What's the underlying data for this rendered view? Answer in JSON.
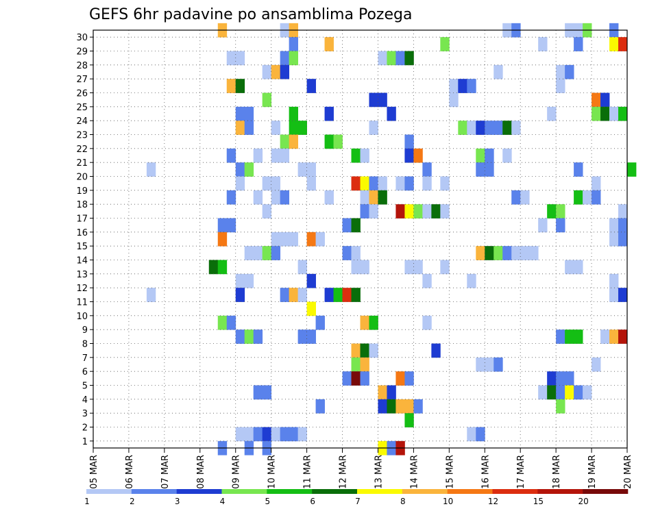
{
  "chart_data": {
    "type": "heatmap",
    "title": "GEFS 6hr padavine po ansamblima Pozega",
    "x_ticks": [
      "05 MAR",
      "06 MAR",
      "07 MAR",
      "08 MAR",
      "09 MAR",
      "10 MAR",
      "11 MAR",
      "12 MAR",
      "13 MAR",
      "14 MAR",
      "15 MAR",
      "16 MAR",
      "17 MAR",
      "18 MAR",
      "19 MAR",
      "20 MAR"
    ],
    "x_range": [
      "05 MAR 00Z",
      "20 MAR 00Z"
    ],
    "x_step_hours": 6,
    "y_ticks": [
      "1",
      "2",
      "3",
      "4",
      "5",
      "6",
      "7",
      "8",
      "9",
      "10",
      "11",
      "12",
      "13",
      "14",
      "15",
      "16",
      "17",
      "18",
      "19",
      "20",
      "21",
      "22",
      "23",
      "24",
      "25",
      "26",
      "27",
      "28",
      "29",
      "30"
    ],
    "y_range": [
      0,
      30
    ],
    "grid": true,
    "legend": {
      "placement": "bottom",
      "labels": [
        "1",
        "2",
        "3",
        "4",
        "5",
        "6",
        "7",
        "8",
        "10",
        "12",
        "15",
        "20"
      ],
      "colors": [
        "#b4c8f5",
        "#5a82eb",
        "#1e3cd2",
        "#78e650",
        "#14be14",
        "#0a6e0a",
        "#fafa00",
        "#fab43c",
        "#f57814",
        "#dc2d0f",
        "#b4140a",
        "#780a0a"
      ]
    },
    "cells": [
      [
        30,
        "08 MAR 12Z",
        7
      ],
      [
        30,
        "10 MAR 06Z",
        0
      ],
      [
        30,
        "10 MAR 12Z",
        7
      ],
      [
        30,
        "16 MAR 12Z",
        0
      ],
      [
        30,
        "16 MAR 18Z",
        1
      ],
      [
        30,
        "18 MAR 06Z",
        0
      ],
      [
        30,
        "18 MAR 12Z",
        0
      ],
      [
        30,
        "18 MAR 18Z",
        3
      ],
      [
        30,
        "19 MAR 12Z",
        1
      ],
      [
        29,
        "10 MAR 12Z",
        1
      ],
      [
        29,
        "11 MAR 12Z",
        7
      ],
      [
        29,
        "14 MAR 18Z",
        3
      ],
      [
        29,
        "17 MAR 12Z",
        0
      ],
      [
        29,
        "18 MAR 12Z",
        1
      ],
      [
        29,
        "19 MAR 12Z",
        6
      ],
      [
        29,
        "19 MAR 18Z",
        9
      ],
      [
        28,
        "08 MAR 18Z",
        0
      ],
      [
        28,
        "09 MAR 00Z",
        0
      ],
      [
        28,
        "10 MAR 06Z",
        1
      ],
      [
        28,
        "10 MAR 12Z",
        3
      ],
      [
        28,
        "13 MAR 00Z",
        0
      ],
      [
        28,
        "13 MAR 06Z",
        3
      ],
      [
        28,
        "13 MAR 12Z",
        1
      ],
      [
        28,
        "13 MAR 18Z",
        5
      ],
      [
        27,
        "09 MAR 18Z",
        0
      ],
      [
        27,
        "10 MAR 00Z",
        7
      ],
      [
        27,
        "10 MAR 06Z",
        2
      ],
      [
        27,
        "16 MAR 06Z",
        0
      ],
      [
        27,
        "18 MAR 00Z",
        0
      ],
      [
        27,
        "18 MAR 06Z",
        1
      ],
      [
        26,
        "08 MAR 18Z",
        7
      ],
      [
        26,
        "09 MAR 00Z",
        5
      ],
      [
        26,
        "11 MAR 00Z",
        2
      ],
      [
        26,
        "15 MAR 00Z",
        0
      ],
      [
        26,
        "15 MAR 06Z",
        2
      ],
      [
        26,
        "15 MAR 12Z",
        1
      ],
      [
        26,
        "18 MAR 00Z",
        0
      ],
      [
        25,
        "09 MAR 18Z",
        3
      ],
      [
        25,
        "12 MAR 18Z",
        2
      ],
      [
        25,
        "13 MAR 00Z",
        2
      ],
      [
        25,
        "15 MAR 00Z",
        0
      ],
      [
        25,
        "19 MAR 00Z",
        8
      ],
      [
        25,
        "19 MAR 06Z",
        2
      ],
      [
        24,
        "09 MAR 00Z",
        1
      ],
      [
        24,
        "09 MAR 06Z",
        1
      ],
      [
        24,
        "10 MAR 12Z",
        4
      ],
      [
        24,
        "11 MAR 12Z",
        2
      ],
      [
        24,
        "13 MAR 06Z",
        2
      ],
      [
        24,
        "17 MAR 18Z",
        0
      ],
      [
        24,
        "19 MAR 00Z",
        3
      ],
      [
        24,
        "19 MAR 06Z",
        5
      ],
      [
        24,
        "19 MAR 12Z",
        0
      ],
      [
        24,
        "19 MAR 18Z",
        4
      ],
      [
        23,
        "09 MAR 00Z",
        7
      ],
      [
        23,
        "09 MAR 06Z",
        1
      ],
      [
        23,
        "10 MAR 00Z",
        0
      ],
      [
        23,
        "10 MAR 12Z",
        4
      ],
      [
        23,
        "10 MAR 18Z",
        4
      ],
      [
        23,
        "12 MAR 18Z",
        0
      ],
      [
        23,
        "15 MAR 06Z",
        3
      ],
      [
        23,
        "15 MAR 12Z",
        0
      ],
      [
        23,
        "15 MAR 18Z",
        2
      ],
      [
        23,
        "16 MAR 00Z",
        1
      ],
      [
        23,
        "16 MAR 06Z",
        1
      ],
      [
        23,
        "16 MAR 12Z",
        5
      ],
      [
        23,
        "16 MAR 18Z",
        0
      ],
      [
        22,
        "10 MAR 06Z",
        3
      ],
      [
        22,
        "10 MAR 12Z",
        7
      ],
      [
        22,
        "11 MAR 12Z",
        4
      ],
      [
        22,
        "11 MAR 18Z",
        3
      ],
      [
        22,
        "13 MAR 18Z",
        1
      ],
      [
        21,
        "08 MAR 18Z",
        1
      ],
      [
        21,
        "09 MAR 12Z",
        0
      ],
      [
        21,
        "10 MAR 00Z",
        0
      ],
      [
        21,
        "10 MAR 06Z",
        0
      ],
      [
        21,
        "12 MAR 06Z",
        4
      ],
      [
        21,
        "12 MAR 12Z",
        0
      ],
      [
        21,
        "13 MAR 18Z",
        2
      ],
      [
        21,
        "14 MAR 00Z",
        8
      ],
      [
        21,
        "15 MAR 18Z",
        3
      ],
      [
        21,
        "16 MAR 00Z",
        1
      ],
      [
        21,
        "16 MAR 12Z",
        0
      ],
      [
        20,
        "06 MAR 12Z",
        0
      ],
      [
        20,
        "09 MAR 00Z",
        1
      ],
      [
        20,
        "09 MAR 06Z",
        3
      ],
      [
        20,
        "10 MAR 18Z",
        0
      ],
      [
        20,
        "11 MAR 00Z",
        0
      ],
      [
        20,
        "14 MAR 06Z",
        1
      ],
      [
        20,
        "15 MAR 18Z",
        1
      ],
      [
        20,
        "16 MAR 00Z",
        1
      ],
      [
        20,
        "18 MAR 12Z",
        1
      ],
      [
        20,
        "20 MAR 00Z",
        4
      ],
      [
        19,
        "09 MAR 00Z",
        0
      ],
      [
        19,
        "09 MAR 18Z",
        0
      ],
      [
        19,
        "10 MAR 00Z",
        0
      ],
      [
        19,
        "11 MAR 00Z",
        0
      ],
      [
        19,
        "12 MAR 06Z",
        9
      ],
      [
        19,
        "12 MAR 12Z",
        6
      ],
      [
        19,
        "12 MAR 18Z",
        1
      ],
      [
        19,
        "13 MAR 00Z",
        0
      ],
      [
        19,
        "13 MAR 12Z",
        0
      ],
      [
        19,
        "13 MAR 18Z",
        1
      ],
      [
        19,
        "14 MAR 06Z",
        0
      ],
      [
        19,
        "14 MAR 18Z",
        0
      ],
      [
        19,
        "19 MAR 00Z",
        0
      ],
      [
        18,
        "08 MAR 18Z",
        1
      ],
      [
        18,
        "09 MAR 12Z",
        0
      ],
      [
        18,
        "10 MAR 00Z",
        0
      ],
      [
        18,
        "10 MAR 06Z",
        1
      ],
      [
        18,
        "11 MAR 12Z",
        0
      ],
      [
        18,
        "12 MAR 12Z",
        0
      ],
      [
        18,
        "12 MAR 18Z",
        7
      ],
      [
        18,
        "13 MAR 00Z",
        5
      ],
      [
        18,
        "16 MAR 18Z",
        1
      ],
      [
        18,
        "17 MAR 00Z",
        0
      ],
      [
        18,
        "18 MAR 12Z",
        4
      ],
      [
        18,
        "18 MAR 18Z",
        0
      ],
      [
        18,
        "19 MAR 00Z",
        1
      ],
      [
        17,
        "09 MAR 18Z",
        0
      ],
      [
        17,
        "12 MAR 12Z",
        1
      ],
      [
        17,
        "12 MAR 18Z",
        0
      ],
      [
        17,
        "13 MAR 12Z",
        10
      ],
      [
        17,
        "13 MAR 18Z",
        6
      ],
      [
        17,
        "14 MAR 00Z",
        3
      ],
      [
        17,
        "14 MAR 06Z",
        0
      ],
      [
        17,
        "14 MAR 12Z",
        5
      ],
      [
        17,
        "14 MAR 18Z",
        0
      ],
      [
        17,
        "17 MAR 18Z",
        4
      ],
      [
        17,
        "18 MAR 00Z",
        3
      ],
      [
        17,
        "19 MAR 18Z",
        0
      ],
      [
        16,
        "08 MAR 12Z",
        1
      ],
      [
        16,
        "08 MAR 18Z",
        1
      ],
      [
        16,
        "12 MAR 00Z",
        1
      ],
      [
        16,
        "12 MAR 06Z",
        5
      ],
      [
        16,
        "17 MAR 12Z",
        0
      ],
      [
        16,
        "18 MAR 00Z",
        1
      ],
      [
        16,
        "19 MAR 12Z",
        0
      ],
      [
        16,
        "19 MAR 18Z",
        1
      ],
      [
        15,
        "08 MAR 12Z",
        8
      ],
      [
        15,
        "10 MAR 00Z",
        0
      ],
      [
        15,
        "10 MAR 06Z",
        0
      ],
      [
        15,
        "10 MAR 12Z",
        0
      ],
      [
        15,
        "11 MAR 00Z",
        8
      ],
      [
        15,
        "11 MAR 06Z",
        0
      ],
      [
        15,
        "19 MAR 12Z",
        0
      ],
      [
        15,
        "19 MAR 18Z",
        1
      ],
      [
        14,
        "09 MAR 06Z",
        0
      ],
      [
        14,
        "09 MAR 12Z",
        0
      ],
      [
        14,
        "09 MAR 18Z",
        3
      ],
      [
        14,
        "10 MAR 00Z",
        1
      ],
      [
        14,
        "12 MAR 00Z",
        1
      ],
      [
        14,
        "12 MAR 06Z",
        0
      ],
      [
        14,
        "15 MAR 18Z",
        7
      ],
      [
        14,
        "16 MAR 00Z",
        5
      ],
      [
        14,
        "16 MAR 06Z",
        3
      ],
      [
        14,
        "16 MAR 12Z",
        1
      ],
      [
        14,
        "16 MAR 18Z",
        0
      ],
      [
        14,
        "17 MAR 00Z",
        0
      ],
      [
        14,
        "17 MAR 06Z",
        0
      ],
      [
        13,
        "08 MAR 06Z",
        5
      ],
      [
        13,
        "08 MAR 12Z",
        4
      ],
      [
        13,
        "10 MAR 18Z",
        0
      ],
      [
        13,
        "12 MAR 06Z",
        0
      ],
      [
        13,
        "12 MAR 12Z",
        0
      ],
      [
        13,
        "13 MAR 18Z",
        0
      ],
      [
        13,
        "14 MAR 00Z",
        0
      ],
      [
        13,
        "14 MAR 18Z",
        0
      ],
      [
        13,
        "18 MAR 06Z",
        0
      ],
      [
        13,
        "18 MAR 12Z",
        0
      ],
      [
        12,
        "09 MAR 00Z",
        0
      ],
      [
        12,
        "09 MAR 06Z",
        0
      ],
      [
        12,
        "11 MAR 00Z",
        2
      ],
      [
        12,
        "14 MAR 06Z",
        0
      ],
      [
        12,
        "15 MAR 12Z",
        0
      ],
      [
        12,
        "19 MAR 12Z",
        0
      ],
      [
        11,
        "06 MAR 12Z",
        0
      ],
      [
        11,
        "09 MAR 00Z",
        2
      ],
      [
        11,
        "10 MAR 06Z",
        1
      ],
      [
        11,
        "10 MAR 12Z",
        7
      ],
      [
        11,
        "10 MAR 18Z",
        0
      ],
      [
        11,
        "11 MAR 12Z",
        2
      ],
      [
        11,
        "11 MAR 18Z",
        4
      ],
      [
        11,
        "12 MAR 00Z",
        9
      ],
      [
        11,
        "12 MAR 06Z",
        5
      ],
      [
        11,
        "19 MAR 12Z",
        0
      ],
      [
        11,
        "19 MAR 18Z",
        2
      ],
      [
        10,
        "11 MAR 00Z",
        6
      ],
      [
        9,
        "08 MAR 12Z",
        3
      ],
      [
        9,
        "08 MAR 18Z",
        1
      ],
      [
        9,
        "11 MAR 06Z",
        1
      ],
      [
        9,
        "12 MAR 12Z",
        7
      ],
      [
        9,
        "12 MAR 18Z",
        4
      ],
      [
        9,
        "14 MAR 06Z",
        0
      ],
      [
        8,
        "09 MAR 00Z",
        1
      ],
      [
        8,
        "09 MAR 06Z",
        3
      ],
      [
        8,
        "09 MAR 12Z",
        1
      ],
      [
        8,
        "10 MAR 18Z",
        1
      ],
      [
        8,
        "11 MAR 00Z",
        1
      ],
      [
        8,
        "18 MAR 00Z",
        1
      ],
      [
        8,
        "18 MAR 06Z",
        4
      ],
      [
        8,
        "18 MAR 12Z",
        4
      ],
      [
        8,
        "19 MAR 06Z",
        0
      ],
      [
        8,
        "19 MAR 12Z",
        7
      ],
      [
        8,
        "19 MAR 18Z",
        10
      ],
      [
        7,
        "12 MAR 06Z",
        7
      ],
      [
        7,
        "12 MAR 12Z",
        5
      ],
      [
        7,
        "12 MAR 18Z",
        0
      ],
      [
        7,
        "14 MAR 12Z",
        2
      ],
      [
        6,
        "12 MAR 06Z",
        3
      ],
      [
        6,
        "12 MAR 12Z",
        7
      ],
      [
        6,
        "15 MAR 18Z",
        0
      ],
      [
        6,
        "16 MAR 00Z",
        0
      ],
      [
        6,
        "16 MAR 06Z",
        1
      ],
      [
        6,
        "19 MAR 00Z",
        0
      ],
      [
        5,
        "12 MAR 00Z",
        1
      ],
      [
        5,
        "12 MAR 06Z",
        11
      ],
      [
        5,
        "12 MAR 12Z",
        1
      ],
      [
        5,
        "13 MAR 12Z",
        8
      ],
      [
        5,
        "13 MAR 18Z",
        1
      ],
      [
        5,
        "17 MAR 18Z",
        2
      ],
      [
        5,
        "18 MAR 00Z",
        1
      ],
      [
        5,
        "18 MAR 06Z",
        1
      ],
      [
        4,
        "09 MAR 12Z",
        1
      ],
      [
        4,
        "09 MAR 18Z",
        1
      ],
      [
        4,
        "13 MAR 00Z",
        7
      ],
      [
        4,
        "13 MAR 06Z",
        2
      ],
      [
        4,
        "17 MAR 12Z",
        0
      ],
      [
        4,
        "17 MAR 18Z",
        5
      ],
      [
        4,
        "18 MAR 00Z",
        1
      ],
      [
        4,
        "18 MAR 06Z",
        6
      ],
      [
        4,
        "18 MAR 12Z",
        1
      ],
      [
        4,
        "18 MAR 18Z",
        0
      ],
      [
        3,
        "11 MAR 06Z",
        1
      ],
      [
        3,
        "13 MAR 00Z",
        2
      ],
      [
        3,
        "13 MAR 06Z",
        5
      ],
      [
        3,
        "13 MAR 12Z",
        7
      ],
      [
        3,
        "13 MAR 18Z",
        7
      ],
      [
        3,
        "14 MAR 00Z",
        1
      ],
      [
        3,
        "18 MAR 00Z",
        3
      ],
      [
        2,
        "13 MAR 18Z",
        4
      ],
      [
        1,
        "09 MAR 00Z",
        0
      ],
      [
        1,
        "09 MAR 06Z",
        0
      ],
      [
        1,
        "09 MAR 12Z",
        1
      ],
      [
        1,
        "09 MAR 18Z",
        2
      ],
      [
        1,
        "10 MAR 00Z",
        0
      ],
      [
        1,
        "10 MAR 06Z",
        1
      ],
      [
        1,
        "10 MAR 12Z",
        1
      ],
      [
        1,
        "10 MAR 18Z",
        0
      ],
      [
        1,
        "15 MAR 12Z",
        0
      ],
      [
        1,
        "15 MAR 18Z",
        1
      ],
      [
        0,
        "08 MAR 12Z",
        1
      ],
      [
        0,
        "09 MAR 06Z",
        1
      ],
      [
        0,
        "09 MAR 18Z",
        1
      ],
      [
        0,
        "13 MAR 00Z",
        6
      ],
      [
        0,
        "13 MAR 06Z",
        1
      ],
      [
        0,
        "13 MAR 12Z",
        10
      ]
    ]
  }
}
